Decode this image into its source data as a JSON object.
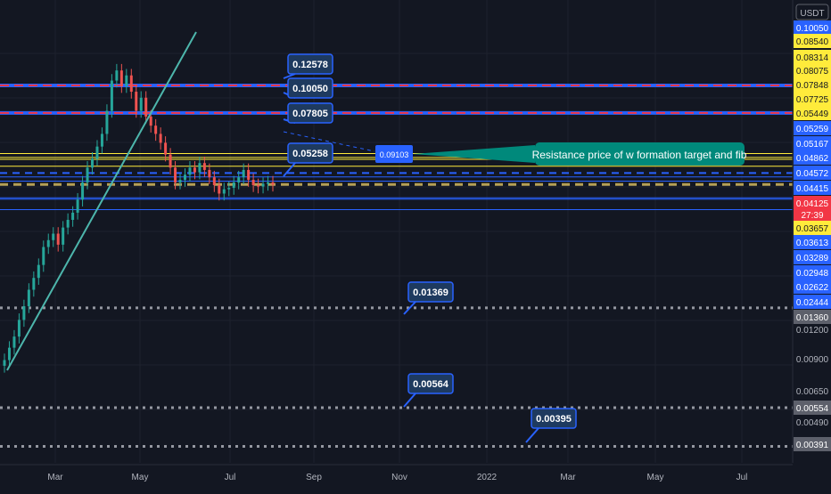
{
  "chart_data": {
    "type": "candlestick",
    "symbol_currency": "USDT",
    "title": "",
    "x_axis": {
      "tick_labels": [
        "Mar",
        "May",
        "Jul",
        "Sep",
        "Nov",
        "2022",
        "Mar",
        "May",
        "Jul"
      ]
    },
    "y_axis": {
      "scale": "log",
      "tick_labels": [
        "0.01200",
        "0.00900",
        "0.00650",
        "0.00490"
      ],
      "price_tags": [
        {
          "label": "0.10050",
          "bg": "#2962ff",
          "fg": "#ffffff"
        },
        {
          "label": "0.08540",
          "bg": "#ffeb3b",
          "fg": "#131722"
        },
        {
          "label": "0.08314",
          "bg": "#ffeb3b",
          "fg": "#131722"
        },
        {
          "label": "0.08075",
          "bg": "#ffeb3b",
          "fg": "#131722"
        },
        {
          "label": "0.07848",
          "bg": "#ffeb3b",
          "fg": "#131722"
        },
        {
          "label": "0.07725",
          "bg": "#ffeb3b",
          "fg": "#131722"
        },
        {
          "label": "0.05449",
          "bg": "#ffeb3b",
          "fg": "#131722"
        },
        {
          "label": "0.05259",
          "bg": "#2962ff",
          "fg": "#ffffff"
        },
        {
          "label": "0.05167",
          "bg": "#2962ff",
          "fg": "#ffffff"
        },
        {
          "label": "0.04862",
          "bg": "#2962ff",
          "fg": "#ffffff"
        },
        {
          "label": "0.04572",
          "bg": "#2962ff",
          "fg": "#ffffff"
        },
        {
          "label": "0.04415",
          "bg": "#2962ff",
          "fg": "#ffffff"
        },
        {
          "label": "0.04125",
          "bg": "#f23645",
          "fg": "#ffffff"
        },
        {
          "label": "27:39",
          "bg": "#f23645",
          "fg": "#ffffff"
        },
        {
          "label": "0.03657",
          "bg": "#ffeb3b",
          "fg": "#131722"
        },
        {
          "label": "0.03613",
          "bg": "#2962ff",
          "fg": "#ffffff"
        },
        {
          "label": "0.03289",
          "bg": "#2962ff",
          "fg": "#ffffff"
        },
        {
          "label": "0.02948",
          "bg": "#2962ff",
          "fg": "#ffffff"
        },
        {
          "label": "0.02622",
          "bg": "#2962ff",
          "fg": "#ffffff"
        },
        {
          "label": "0.02444",
          "bg": "#2962ff",
          "fg": "#ffffff"
        },
        {
          "label": "0.01360",
          "bg": "#5d606b",
          "fg": "#ffffff"
        },
        {
          "label": "0.00554",
          "bg": "#5d606b",
          "fg": "#ffffff"
        },
        {
          "label": "0.00391",
          "bg": "#5d606b",
          "fg": "#ffffff"
        }
      ]
    },
    "current_price": 0.04125,
    "candles_approx": [
      0.0085,
      0.0095,
      0.0105,
      0.0122,
      0.0138,
      0.016,
      0.0178,
      0.02,
      0.0235,
      0.025,
      0.0265,
      0.024,
      0.028,
      0.03,
      0.032,
      0.036,
      0.042,
      0.048,
      0.052,
      0.058,
      0.065,
      0.08,
      0.105,
      0.115,
      0.1,
      0.11,
      0.095,
      0.08,
      0.09,
      0.076,
      0.07,
      0.065,
      0.06,
      0.054,
      0.048,
      0.042,
      0.043,
      0.045,
      0.048,
      0.046,
      0.05,
      0.047,
      0.044,
      0.041,
      0.038,
      0.0395,
      0.04,
      0.042,
      0.044,
      0.047,
      0.043,
      0.041,
      0.0405,
      0.0415,
      0.042,
      0.0412
    ],
    "horizontal_levels": [
      {
        "value": 0.1005,
        "style": "blue-red-dash"
      },
      {
        "value": 0.0785,
        "style": "blue-red-dash"
      },
      {
        "value": 0.0545,
        "style": "yellow"
      },
      {
        "value": 0.0526,
        "style": "yellow"
      },
      {
        "value": 0.0517,
        "style": "yellow"
      },
      {
        "value": 0.0486,
        "style": "yellow"
      },
      {
        "value": 0.0457,
        "style": "blue-dash"
      },
      {
        "value": 0.04415,
        "style": "blue"
      },
      {
        "value": 0.0425,
        "style": "blue"
      },
      {
        "value": 0.04125,
        "style": "gold-dash"
      },
      {
        "value": 0.03657,
        "style": "blue"
      },
      {
        "value": 0.03613,
        "style": "blue"
      },
      {
        "value": 0.03289,
        "style": "blue"
      },
      {
        "value": 0.0136,
        "style": "white-dots"
      },
      {
        "value": 0.00554,
        "style": "white-dots"
      },
      {
        "value": 0.00391,
        "style": "white-dots"
      }
    ],
    "callouts": [
      {
        "label": "0.12578"
      },
      {
        "label": "0.10050"
      },
      {
        "label": "0.07805"
      },
      {
        "label": "0.05258"
      },
      {
        "label": "0.01369"
      },
      {
        "label": "0.00564"
      },
      {
        "label": "0.00395"
      }
    ],
    "annotation": {
      "price_label": "0.09103",
      "text": "Resistance price of w formation target and fib"
    },
    "trendline": "rising support from March low"
  }
}
